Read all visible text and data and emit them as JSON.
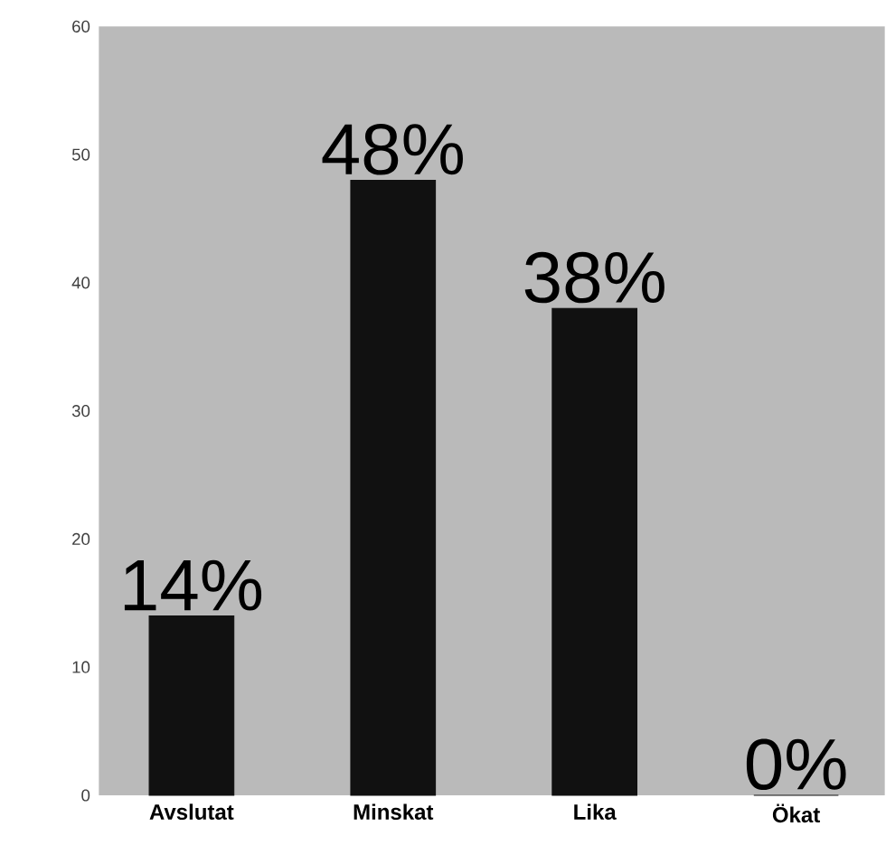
{
  "chart_data": {
    "type": "bar",
    "categories": [
      "Avslutat",
      "Minskat",
      "Lika",
      "Ökat"
    ],
    "values": [
      14,
      48,
      38,
      0
    ],
    "value_labels": [
      "14%",
      "48%",
      "38%",
      "0%"
    ],
    "color": "#111111",
    "ylim": [
      0,
      60
    ],
    "yticks": [
      0,
      10,
      20,
      30,
      40,
      50,
      60
    ]
  }
}
